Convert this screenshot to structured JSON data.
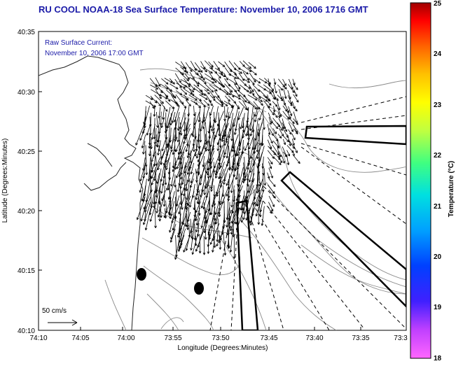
{
  "title": "RU COOL  NOAA-18  Sea Surface Temperature:  November 10, 2006 1716 GMT",
  "annotation": {
    "line1": "Raw Surface Current:",
    "line2": "November 10, 2006 17:00 GMT"
  },
  "scale_label": "50 cm/s",
  "axes": {
    "xlabel": "Longitude (Degrees:Minutes)",
    "ylabel": "Latitude (Degrees:Minutes)",
    "x_ticks": [
      "74:10",
      "74:05",
      "74:00",
      "73:55",
      "73:50",
      "73:45",
      "73:40",
      "73:35",
      "73:3"
    ],
    "y_ticks": [
      "40:35",
      "40:30",
      "40:25",
      "40:20",
      "40:15",
      "40:10"
    ]
  },
  "colorbar": {
    "label": "Temperature (°C)",
    "ticks": [
      "25",
      "24",
      "23",
      "22",
      "21",
      "20",
      "19",
      "18"
    ],
    "range": [
      18,
      25
    ]
  },
  "colors": {
    "title": "#1b1ba8",
    "annotation": "#1b1ba8",
    "arrows": "#000000",
    "contours": "#8a8a8a"
  }
}
